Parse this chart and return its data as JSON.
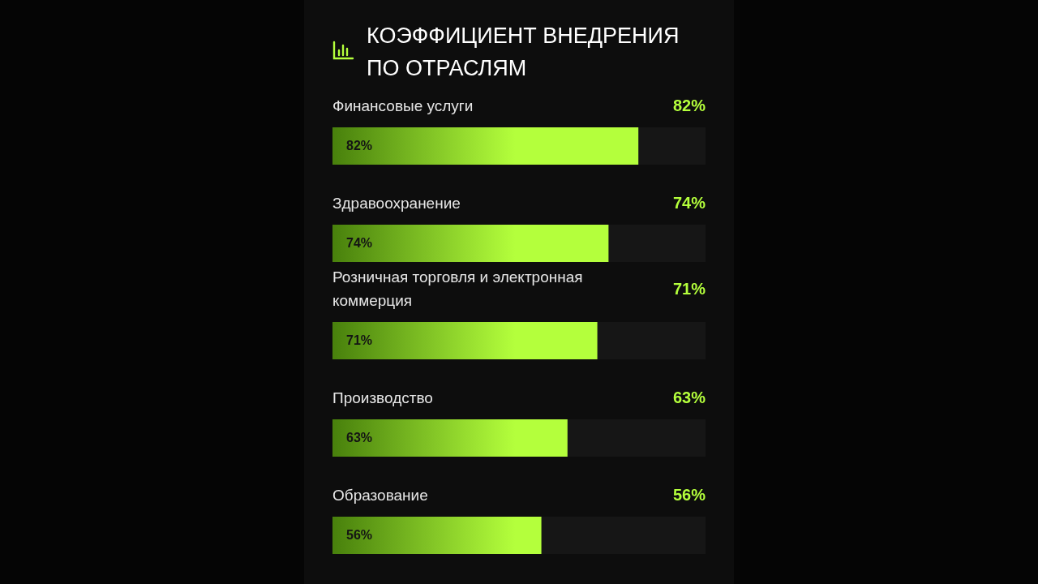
{
  "chart_data": {
    "type": "bar",
    "orientation": "horizontal",
    "title": "КОЭФФИЦИЕНТ ВНЕДРЕНИЯ ПО ОТРАСЛЯМ",
    "categories": [
      "Финансовые услуги",
      "Здравоохранение",
      "Розничная торговля и электронная коммерция",
      "Производство",
      "Образование"
    ],
    "series": [
      {
        "color": "#b4ff3c",
        "values": [
          82,
          74,
          71,
          63,
          56
        ],
        "value_labels": [
          "82%",
          "74%",
          "71%",
          "63%",
          "56%"
        ]
      }
    ],
    "xlim": [
      0,
      100
    ],
    "tick_labels": false,
    "legend": false
  }
}
